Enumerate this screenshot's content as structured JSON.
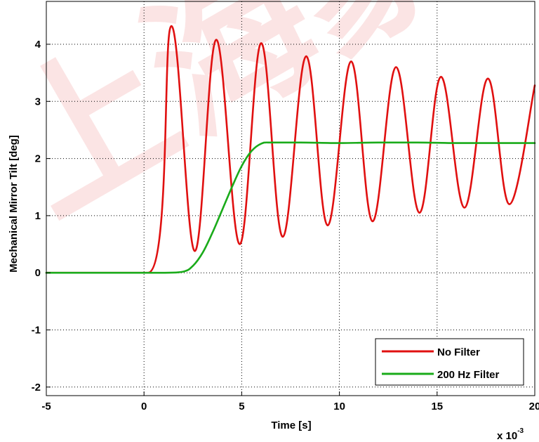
{
  "chart_data": {
    "type": "line",
    "xlabel": "Time [s]",
    "ylabel": "Mechanical Mirror Tilt [deg]",
    "x_exponent_label": "x 10",
    "x_exponent_power": "-3",
    "xlim": [
      -5,
      20
    ],
    "ylim": [
      -2.15,
      4.75
    ],
    "x_ticks": [
      -5,
      0,
      5,
      10,
      15,
      20
    ],
    "x_tick_labels": [
      "-5",
      "0",
      "5",
      "10",
      "15",
      "20"
    ],
    "y_ticks": [
      -2,
      -1,
      0,
      1,
      2,
      3,
      4
    ],
    "y_tick_labels": [
      "-2",
      "-1",
      "0",
      "1",
      "2",
      "3",
      "4"
    ],
    "grid": true,
    "legend_position": "bottom-right",
    "series": [
      {
        "name": "No Filter",
        "color": "#e01010",
        "x": [
          -5,
          0.2,
          1.4,
          2.6,
          3.7,
          4.9,
          6.0,
          7.1,
          8.3,
          9.4,
          10.6,
          11.7,
          12.9,
          14.1,
          15.2,
          16.4,
          17.6,
          18.7,
          20
        ],
        "y": [
          0,
          0,
          4.32,
          0.38,
          4.08,
          0.5,
          4.02,
          0.63,
          3.79,
          0.83,
          3.7,
          0.9,
          3.6,
          1.05,
          3.43,
          1.14,
          3.4,
          1.2,
          3.28
        ]
      },
      {
        "name": "200 Hz Filter",
        "color": "#1aab1a",
        "x": [
          -5,
          0,
          1.0,
          2.0,
          2.5,
          3.0,
          3.5,
          4.0,
          4.5,
          5.0,
          5.5,
          6.0,
          6.5,
          8,
          10,
          12,
          14,
          16,
          18,
          20
        ],
        "y": [
          0,
          0,
          0.0,
          0.02,
          0.12,
          0.35,
          0.7,
          1.1,
          1.5,
          1.87,
          2.13,
          2.26,
          2.28,
          2.28,
          2.27,
          2.28,
          2.28,
          2.27,
          2.27,
          2.27
        ]
      }
    ]
  },
  "watermark": "上海蒙",
  "colors": {
    "watermark": "#e23b3b",
    "grid": "#000000"
  }
}
